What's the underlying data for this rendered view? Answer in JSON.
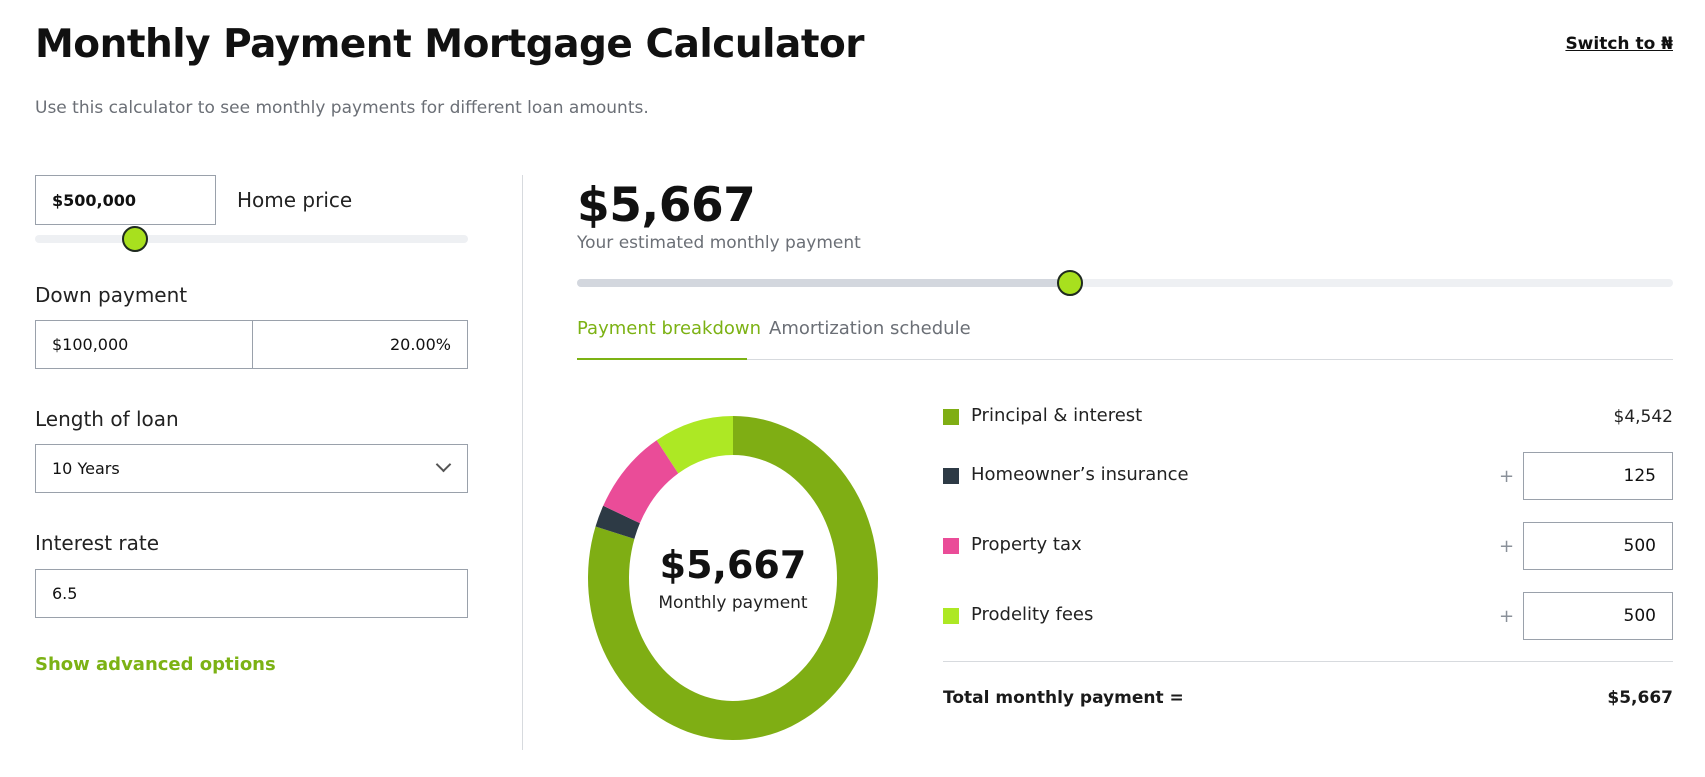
{
  "header": {
    "title": "Monthly Payment Mortgage Calculator",
    "switch_link": "Switch to ₦",
    "subtitle": "Use this calculator to see monthly payments for different loan amounts."
  },
  "form": {
    "home_price": {
      "value": "$500,000",
      "label": "Home price",
      "slider_level": 0.23
    },
    "down_payment": {
      "label": "Down payment",
      "amount": "$100,000",
      "percent": "20.00%"
    },
    "loan_length": {
      "label": "Length of loan",
      "selected": "10 Years"
    },
    "interest_rate": {
      "label": "Interest rate",
      "value": "6.5"
    },
    "advanced_link": "Show advanced options"
  },
  "summary": {
    "monthly_amount": "$5,667",
    "monthly_label": "Your estimated monthly payment",
    "slider_level": 0.45
  },
  "tabs": [
    {
      "label": "Payment breakdown",
      "active": true
    },
    {
      "label": "Amortization schedule",
      "active": false
    }
  ],
  "donut": {
    "center_amount": "$5,667",
    "center_label": "Monthly payment"
  },
  "breakdown": [
    {
      "label": "Principal & interest",
      "value": "$4,542",
      "editable": false,
      "color": "#7fae14"
    },
    {
      "label": "Homeowner’s insurance",
      "value": "125",
      "editable": true,
      "color": "#2d3a45"
    },
    {
      "label": "Property tax",
      "value": "500",
      "editable": true,
      "color": "#ea4c98"
    },
    {
      "label": "Prodelity fees",
      "value": "500",
      "editable": true,
      "color": "#ade824"
    }
  ],
  "plus_sign": "+",
  "total": {
    "label": "Total monthly payment =",
    "value": "$5,667"
  },
  "colors": {
    "accent": "#7cb214",
    "knob": "#a8e01e"
  },
  "chart_data": {
    "type": "pie",
    "categories": [
      "Principal & interest",
      "Homeowner’s insurance",
      "Property tax",
      "Prodelity fees"
    ],
    "values": [
      4542,
      125,
      500,
      500
    ]
  }
}
